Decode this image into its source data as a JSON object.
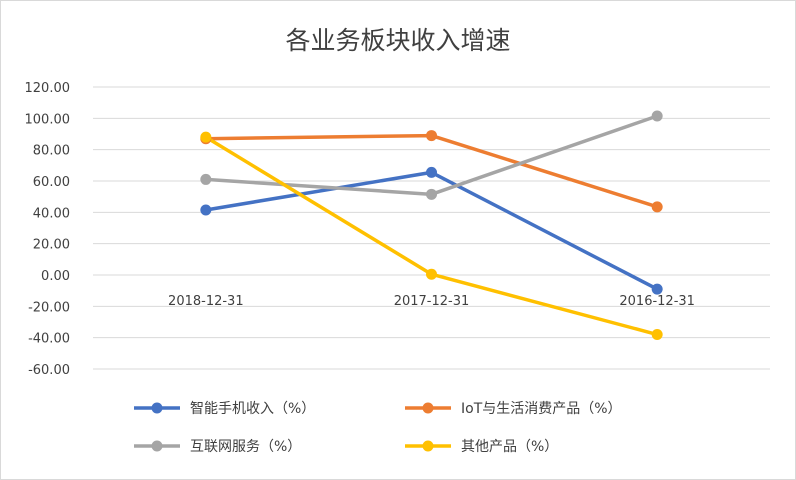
{
  "chart_data": {
    "type": "line",
    "title": "各业务板块收入增速",
    "categories": [
      "2018-12-31",
      "2017-12-31",
      "2016-12-31"
    ],
    "y_ticks": [
      "120.00",
      "100.00",
      "80.00",
      "60.00",
      "40.00",
      "20.00",
      "0.00",
      "-20.00",
      "-40.00",
      "-60.00"
    ],
    "ylim": [
      -60,
      120
    ],
    "grid": true,
    "legend_position": "bottom",
    "series": [
      {
        "name": "智能手机收入（%）",
        "color": "#4472C4",
        "values": [
          41.5,
          65.5,
          -9.0
        ]
      },
      {
        "name": "IoT与生活消费产品（%）",
        "color": "#ED7D31",
        "values": [
          87.0,
          89.0,
          43.5
        ]
      },
      {
        "name": "互联网服务（%）",
        "color": "#A5A5A5",
        "values": [
          61.0,
          51.5,
          101.5
        ]
      },
      {
        "name": "其他产品（%）",
        "color": "#FFC000",
        "values": [
          88.0,
          0.5,
          -38.0
        ]
      }
    ]
  }
}
